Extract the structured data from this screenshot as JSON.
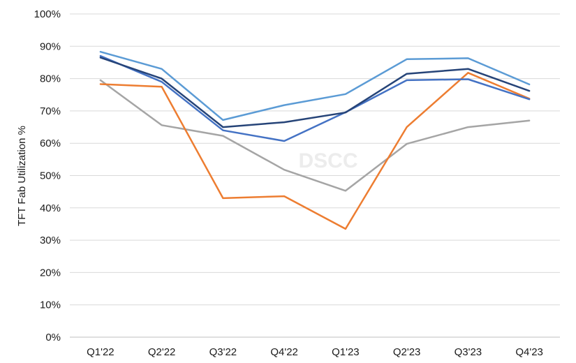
{
  "chart_data": {
    "type": "line",
    "categories": [
      "Q1'22",
      "Q2'22",
      "Q3'22",
      "Q4'22",
      "Q1'23",
      "Q2'23",
      "Q3'23",
      "Q4'23"
    ],
    "ylabel": "TFT Fab Utilization %",
    "xlabel": "",
    "title": "",
    "ylim": [
      0,
      100
    ],
    "yticks": [
      0,
      10,
      20,
      30,
      40,
      50,
      60,
      70,
      80,
      90,
      100
    ],
    "ytick_labels": [
      "0%",
      "10%",
      "20%",
      "30%",
      "40%",
      "50%",
      "60%",
      "70%",
      "80%",
      "90%",
      "100%"
    ],
    "grid": true,
    "legend": "none",
    "watermark": "DSCC",
    "series": [
      {
        "color": "#a5a5a5",
        "values": [
          79.5,
          65.6,
          62.3,
          51.8,
          45.3,
          59.8,
          65.0,
          67.0
        ]
      },
      {
        "color": "#ed7d31",
        "values": [
          78.3,
          77.5,
          43.0,
          43.6,
          33.5,
          65.0,
          81.8,
          73.8
        ]
      },
      {
        "color": "#4472c4",
        "values": [
          87.0,
          79.0,
          64.0,
          60.7,
          69.6,
          79.5,
          79.8,
          73.6
        ]
      },
      {
        "color": "#264478",
        "values": [
          86.5,
          80.0,
          65.0,
          66.5,
          69.5,
          81.5,
          83.0,
          76.2
        ]
      },
      {
        "color": "#5b9bd5",
        "values": [
          88.3,
          83.0,
          67.2,
          71.8,
          75.2,
          86.0,
          86.3,
          78.2
        ]
      }
    ]
  }
}
